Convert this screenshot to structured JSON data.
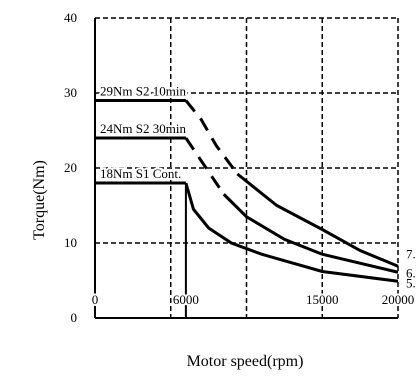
{
  "chart_data": {
    "type": "line",
    "x_label": "Motor speed(rpm)",
    "y_label": "Torque(Nm)",
    "xlim": [
      0,
      20000
    ],
    "ylim": [
      0,
      40
    ],
    "xticks": [
      0,
      6000,
      15000,
      20000
    ],
    "yticks": [
      0,
      10,
      20,
      30,
      40
    ],
    "xgrid": [
      5000,
      10000,
      15000,
      20000
    ],
    "series": [
      {
        "name": "29Nm S2 10min",
        "color": "#000000",
        "end_label": "7.",
        "x": [
          0,
          6000,
          7000,
          8000,
          9400,
          12000,
          15000,
          17500,
          20000
        ],
        "values": [
          29,
          29,
          26.5,
          23,
          19.2,
          15,
          11.8,
          9,
          6.9
        ],
        "dashed_until": 4
      },
      {
        "name": "24Nm S2 30min",
        "color": "#000000",
        "end_label": "6.",
        "x": [
          0,
          6000,
          7000,
          8500,
          10000,
          12500,
          15000,
          20000
        ],
        "values": [
          24,
          24,
          21,
          16.5,
          13.5,
          10.5,
          8.5,
          6.1
        ],
        "dashed_until": 3
      },
      {
        "name": "18Nm S1 Cont.",
        "color": "#000000",
        "end_label": "5.",
        "x": [
          0,
          6000,
          6500,
          7500,
          9000,
          11000,
          15000,
          20000
        ],
        "values": [
          18,
          18,
          14.5,
          12,
          10,
          8.5,
          6.2,
          4.9
        ],
        "dashed_until": 1
      }
    ]
  }
}
